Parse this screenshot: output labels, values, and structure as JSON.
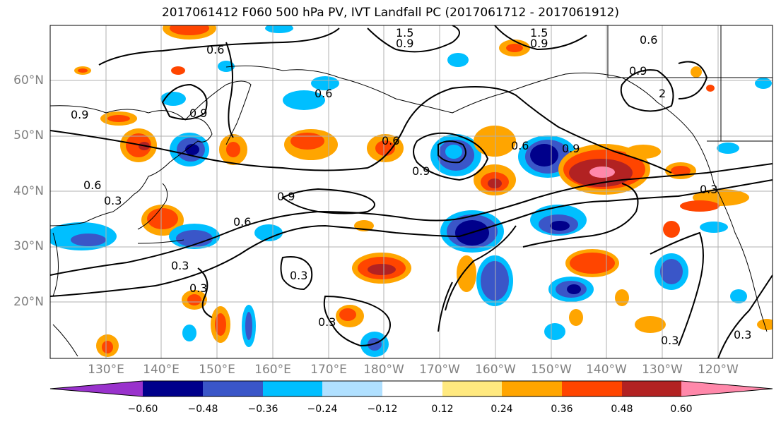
{
  "title": "2017061412 F060 500 hPa PV, IVT Landfall PC (2017061712 - 2017061912)",
  "latitude_labels": [
    "60°N",
    "50°N",
    "40°N",
    "30°N",
    "20°N"
  ],
  "longitude_labels": [
    "130°E",
    "140°E",
    "150°E",
    "160°E",
    "170°E",
    "180°W",
    "170°W",
    "160°W",
    "150°W",
    "140°W",
    "130°W",
    "120°W"
  ],
  "contour_labels": [
    "0.6",
    "0.9",
    "0.6",
    "1.5",
    "0.9",
    "1.5",
    "0.9",
    "0.6",
    "0.9",
    "2",
    "0.6",
    "0.9",
    "0.6",
    "0.9",
    "0.9",
    "0.3",
    "0.9",
    "0.6",
    "0.3",
    "0.3",
    "0.3",
    "0.3",
    "0.3",
    "0.3",
    "0.3",
    "0.6"
  ],
  "colorbar": {
    "tick_labels": [
      "−0.60",
      "−0.48",
      "−0.36",
      "−0.24",
      "−0.12",
      "0.12",
      "0.24",
      "0.36",
      "0.48",
      "0.60"
    ],
    "colors": [
      "#9932cc",
      "#00008b",
      "#3a56c8",
      "#00bfff",
      "#b0e0ff",
      "#ffffff",
      "#ffe97f",
      "#ffa500",
      "#ff4500",
      "#b22222",
      "#ff88aa"
    ]
  },
  "field_colors": {
    "neg_lowest": "#00008b",
    "neg_strong": "#3a56c8",
    "neg_mid": "#00bfff",
    "neg_weak": "#b0e0ff",
    "pos_weak": "#ffe97f",
    "pos_mid": "#ffa500",
    "pos_strong": "#ff4500",
    "pos_stronger": "#b22222",
    "pos_highest": "#ff88aa"
  }
}
